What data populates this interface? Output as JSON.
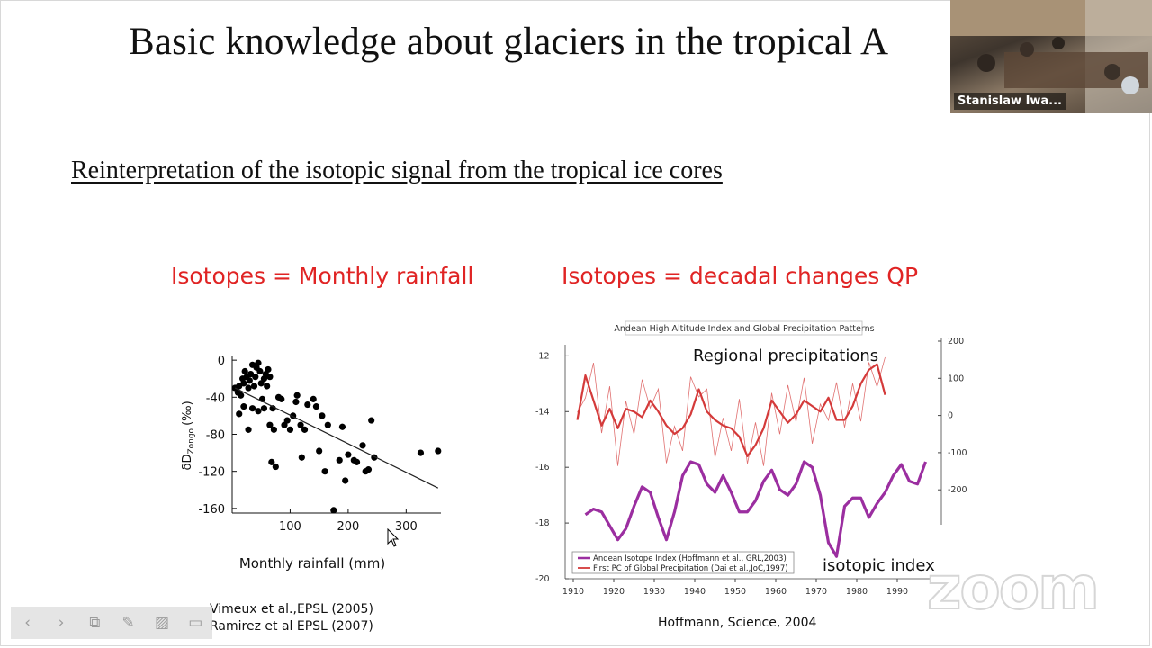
{
  "slide": {
    "title": "Basic knowledge about glaciers in the tropical A",
    "subtitle": "Reinterpretation of the isotopic signal from the tropical ice cores",
    "left_heading": "Isotopes = Monthly rainfall",
    "right_heading": "Isotopes = decadal changes QP",
    "left_cite_1": "Vimeux et al.,EPSL (2005)",
    "left_cite_2": "Ramirez et al EPSL (2007)",
    "right_cite": "Hoffmann, Science, 2004"
  },
  "video": {
    "participant_name": "Stanislaw Iwa..."
  },
  "toolbar": {
    "icons": [
      "chevron-left-icon",
      "chevron-right-icon",
      "slides-icon",
      "pen-icon",
      "highlight-icon",
      "screen-icon"
    ]
  },
  "zoom_watermark": "zoom",
  "chart_data": [
    {
      "type": "scatter",
      "xlabel": "Monthly rainfall (mm)",
      "ylabel": "δD",
      "ylabel_sub": "Zongo",
      "ylabel_unit": "(‰)",
      "xlim": [
        0,
        360
      ],
      "ylim": [
        -165,
        5
      ],
      "x_ticks": [
        100,
        200,
        300
      ],
      "y_ticks": [
        0,
        -40,
        -80,
        -120,
        -160
      ],
      "points": [
        [
          5,
          -30
        ],
        [
          10,
          -35
        ],
        [
          12,
          -28
        ],
        [
          15,
          -38
        ],
        [
          18,
          -20
        ],
        [
          20,
          -25
        ],
        [
          22,
          -12
        ],
        [
          25,
          -18
        ],
        [
          28,
          -30
        ],
        [
          30,
          -22
        ],
        [
          32,
          -15
        ],
        [
          35,
          -5
        ],
        [
          38,
          -28
        ],
        [
          40,
          -18
        ],
        [
          42,
          -8
        ],
        [
          45,
          -3
        ],
        [
          48,
          -12
        ],
        [
          50,
          -25
        ],
        [
          52,
          -42
        ],
        [
          55,
          -20
        ],
        [
          58,
          -15
        ],
        [
          60,
          -28
        ],
        [
          62,
          -10
        ],
        [
          65,
          -18
        ],
        [
          70,
          -52
        ],
        [
          12,
          -58
        ],
        [
          20,
          -50
        ],
        [
          28,
          -75
        ],
        [
          35,
          -52
        ],
        [
          45,
          -55
        ],
        [
          55,
          -52
        ],
        [
          65,
          -70
        ],
        [
          68,
          -110
        ],
        [
          72,
          -75
        ],
        [
          75,
          -115
        ],
        [
          80,
          -40
        ],
        [
          85,
          -42
        ],
        [
          90,
          -70
        ],
        [
          95,
          -65
        ],
        [
          100,
          -75
        ],
        [
          105,
          -60
        ],
        [
          110,
          -45
        ],
        [
          112,
          -38
        ],
        [
          118,
          -70
        ],
        [
          120,
          -105
        ],
        [
          125,
          -75
        ],
        [
          130,
          -48
        ],
        [
          140,
          -42
        ],
        [
          145,
          -50
        ],
        [
          150,
          -98
        ],
        [
          155,
          -60
        ],
        [
          160,
          -120
        ],
        [
          165,
          -70
        ],
        [
          175,
          -162
        ],
        [
          185,
          -108
        ],
        [
          190,
          -72
        ],
        [
          195,
          -130
        ],
        [
          200,
          -102
        ],
        [
          210,
          -108
        ],
        [
          215,
          -110
        ],
        [
          225,
          -92
        ],
        [
          230,
          -120
        ],
        [
          235,
          -118
        ],
        [
          240,
          -65
        ],
        [
          245,
          -105
        ],
        [
          325,
          -100
        ],
        [
          355,
          -98
        ]
      ],
      "trend_line": [
        [
          5,
          -30
        ],
        [
          355,
          -138
        ]
      ]
    },
    {
      "type": "line",
      "title": "Andean High Altitude Index and Global Precipitation Patterns",
      "xlim": [
        1908,
        1998
      ],
      "x_ticks": [
        1910,
        1920,
        1930,
        1940,
        1950,
        1960,
        1970,
        1980,
        1990
      ],
      "y_left_ticks": [
        -12,
        -14,
        -16,
        -18,
        -20
      ],
      "y_left_lim": [
        -20,
        -11.6
      ],
      "y_right_ticks": [
        200,
        100,
        0,
        -100,
        -200
      ],
      "annotations": [
        "Regional precipitations",
        "isotopic index"
      ],
      "legend": [
        "Andean Isotope Index (Hoffmann et al., GRL,2003)",
        "First PC of Global Precipitation (Dai et al.,JoC,1997)"
      ],
      "series": [
        {
          "name": "First PC of Global Precipitation (Dai et al.,JoC,1997)",
          "color": "#d43a3a",
          "x": [
            1911,
            1913,
            1915,
            1917,
            1919,
            1921,
            1923,
            1925,
            1927,
            1929,
            1931,
            1933,
            1935,
            1937,
            1939,
            1941,
            1943,
            1945,
            1947,
            1949,
            1951,
            1953,
            1955,
            1957,
            1959,
            1961,
            1963,
            1965,
            1967,
            1969,
            1971,
            1973,
            1975,
            1977,
            1979,
            1981,
            1983,
            1985,
            1987
          ],
          "values": [
            -14.3,
            -12.7,
            -13.6,
            -14.5,
            -13.9,
            -14.6,
            -13.9,
            -14.0,
            -14.2,
            -13.6,
            -14.0,
            -14.5,
            -14.8,
            -14.6,
            -14.1,
            -13.2,
            -14.0,
            -14.3,
            -14.5,
            -14.6,
            -14.9,
            -15.6,
            -15.2,
            -14.6,
            -13.6,
            -14.0,
            -14.4,
            -14.1,
            -13.6,
            -13.8,
            -14.0,
            -13.5,
            -14.3,
            -14.3,
            -13.8,
            -13.0,
            -12.5,
            -12.3,
            -13.4
          ]
        },
        {
          "name": "Andean Isotope Index (Hoffmann et al., GRL,2003)",
          "color": "#9b2ea0",
          "x": [
            1913,
            1915,
            1917,
            1919,
            1921,
            1923,
            1925,
            1927,
            1929,
            1931,
            1933,
            1935,
            1937,
            1939,
            1941,
            1943,
            1945,
            1947,
            1949,
            1951,
            1953,
            1955,
            1957,
            1959,
            1961,
            1963,
            1965,
            1967,
            1969,
            1971,
            1973,
            1975,
            1977,
            1979,
            1981,
            1983,
            1985,
            1987,
            1989,
            1991,
            1993,
            1995,
            1997
          ],
          "values": [
            -17.7,
            -17.5,
            -17.6,
            -18.1,
            -18.6,
            -18.2,
            -17.4,
            -16.7,
            -16.9,
            -17.8,
            -18.6,
            -17.6,
            -16.3,
            -15.8,
            -15.9,
            -16.6,
            -16.9,
            -16.3,
            -16.9,
            -17.6,
            -17.6,
            -17.2,
            -16.5,
            -16.1,
            -16.8,
            -17.0,
            -16.6,
            -15.8,
            -16.0,
            -17.0,
            -18.7,
            -19.2,
            -17.4,
            -17.1,
            -17.1,
            -17.8,
            -17.3,
            -16.9,
            -16.3,
            -15.9,
            -16.5,
            -16.6,
            -15.8
          ]
        }
      ]
    }
  ]
}
